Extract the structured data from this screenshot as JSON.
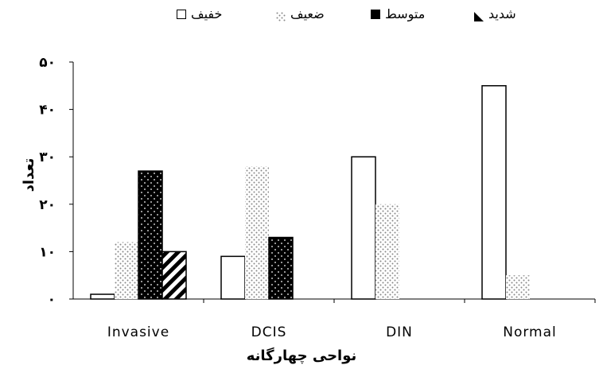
{
  "chart_data": {
    "type": "bar",
    "categories": [
      "Invasive",
      "DCIS",
      "DIN",
      "Normal"
    ],
    "series": [
      {
        "name": "خفیف",
        "values": [
          1,
          9,
          30,
          45
        ],
        "pattern": "white",
        "legend_symbol": "□"
      },
      {
        "name": "ضعیف",
        "values": [
          12,
          28,
          20,
          5
        ],
        "pattern": "dots-light",
        "legend_symbol": "▫"
      },
      {
        "name": "متوسط",
        "values": [
          27,
          13,
          0,
          0
        ],
        "pattern": "dots-dark",
        "legend_symbol": "■"
      },
      {
        "name": "شدید",
        "values": [
          10,
          0,
          0,
          0
        ],
        "pattern": "diagonal",
        "legend_symbol": "◣"
      }
    ],
    "xlabel": "نواحی چهارگانه",
    "ylabel": "تعداد",
    "ylim": [
      0,
      50
    ],
    "yticks": [
      "۰",
      "۱۰",
      "۲۰",
      "۳۰",
      "۴۰",
      "۵۰"
    ],
    "grid": false,
    "legend_position": "top"
  }
}
